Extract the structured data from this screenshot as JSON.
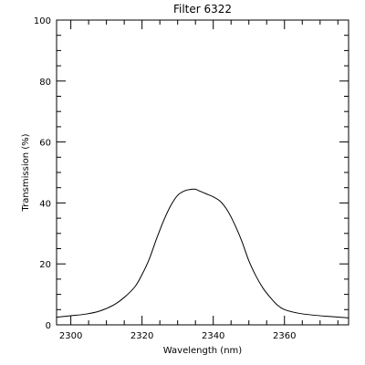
{
  "chart_data": {
    "type": "line",
    "title": "Filter 6322",
    "xlabel": "Wavelength (nm)",
    "ylabel": "Transmission (%)",
    "xlim": [
      2296,
      2378
    ],
    "ylim": [
      0,
      100
    ],
    "x_ticks": [
      2300,
      2320,
      2340,
      2360
    ],
    "y_ticks": [
      0,
      20,
      40,
      60,
      80,
      100
    ],
    "x_ticks_labels": [
      "2300",
      "2320",
      "2340",
      "2360"
    ],
    "y_ticks_labels": [
      "0",
      "20",
      "40",
      "60",
      "80",
      "100"
    ],
    "x_minor_step": 5,
    "y_minor_step": 5,
    "grid": false,
    "series": [
      {
        "x": [
          2296,
          2300,
          2304,
          2308,
          2312,
          2315,
          2318,
          2320,
          2322,
          2324,
          2326,
          2328,
          2330,
          2332,
          2334,
          2335,
          2336,
          2338,
          2340,
          2342,
          2344,
          2346,
          2348,
          2350,
          2352,
          2354,
          2356,
          2358,
          2360,
          2364,
          2368,
          2372,
          2378
        ],
        "y": [
          2.5,
          3.0,
          3.5,
          4.5,
          6.5,
          9.0,
          12.5,
          16.5,
          21.5,
          28.0,
          34.0,
          39.0,
          42.5,
          44.0,
          44.5,
          44.5,
          44.0,
          43.0,
          42.0,
          40.5,
          37.5,
          33.0,
          27.5,
          21.0,
          16.0,
          12.0,
          9.0,
          6.5,
          5.0,
          3.8,
          3.2,
          2.8,
          2.3
        ],
        "color": "#000000"
      }
    ]
  }
}
